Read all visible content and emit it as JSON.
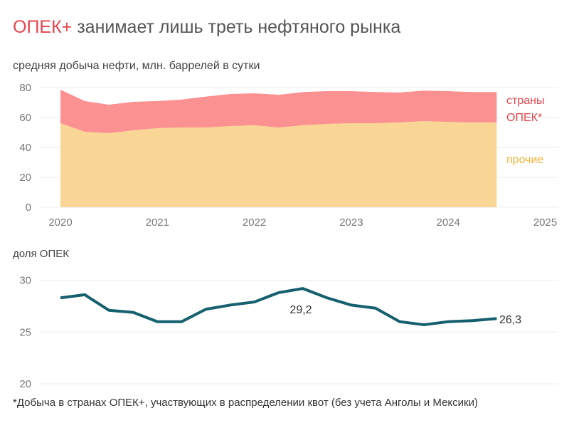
{
  "title": {
    "accent": "ОПЕК+",
    "rest": " занимает лишь треть нефтяного рынка"
  },
  "colors": {
    "opec": "#fc9191",
    "others": "#f9d695",
    "opec_label": "#e8454c",
    "others_label": "#f0b43c",
    "share_line": "#15606e"
  },
  "footnote": "*Добыча в странах ОПЕК+, участвующих в распределении квот (без учета Анголы и Мексики)",
  "chart_data": [
    {
      "type": "area",
      "stacked": true,
      "subtitle": "средняя добыча нефти, млн. баррелей в сутки",
      "x": [
        2020.0,
        2020.25,
        2020.5,
        2020.75,
        2021.0,
        2021.25,
        2021.5,
        2021.75,
        2022.0,
        2022.25,
        2022.5,
        2022.75,
        2023.0,
        2023.25,
        2023.5,
        2023.75,
        2024.0,
        2024.25,
        2024.5
      ],
      "series": [
        {
          "name": "прочие",
          "values": [
            56.2,
            50.5,
            49.5,
            51.4,
            52.9,
            53.3,
            53.3,
            54.3,
            54.8,
            53.3,
            54.8,
            55.7,
            56.2,
            56.2,
            56.7,
            57.6,
            57.1,
            56.7,
            56.7
          ]
        },
        {
          "name": "страны ОПЕК*",
          "values": [
            22.4,
            20.5,
            19.1,
            19.1,
            18.1,
            18.7,
            20.7,
            21.4,
            21.4,
            21.9,
            22.2,
            21.9,
            21.4,
            20.8,
            20.0,
            20.4,
            20.5,
            20.3,
            20.3
          ]
        }
      ],
      "series_label_lines": [
        "страны",
        "ОПЕК*"
      ],
      "xticks": [
        "2020",
        "2021",
        "2022",
        "2023",
        "2024",
        "2025"
      ],
      "yticks": [
        "0",
        "20",
        "40",
        "60",
        "80"
      ],
      "xlim": [
        2020,
        2025
      ],
      "ylim": [
        0,
        80
      ],
      "grid": true
    },
    {
      "type": "line",
      "subtitle": "доля ОПЕК",
      "x": [
        2020.0,
        2020.25,
        2020.5,
        2020.75,
        2021.0,
        2021.25,
        2021.5,
        2021.75,
        2022.0,
        2022.25,
        2022.5,
        2022.75,
        2023.0,
        2023.25,
        2023.5,
        2023.75,
        2024.0,
        2024.25,
        2024.5
      ],
      "values": [
        28.3,
        28.6,
        27.1,
        26.9,
        26.0,
        26.0,
        27.2,
        27.6,
        27.9,
        28.8,
        29.2,
        28.3,
        27.6,
        27.3,
        26.0,
        25.7,
        26.0,
        26.1,
        26.3
      ],
      "annotations": [
        {
          "x": 2022.5,
          "label": "29,2"
        },
        {
          "x": 2024.5,
          "label": "26,3"
        }
      ],
      "yticks": [
        "20",
        "25",
        "30"
      ],
      "ylim": [
        20,
        30
      ],
      "grid": true
    }
  ]
}
